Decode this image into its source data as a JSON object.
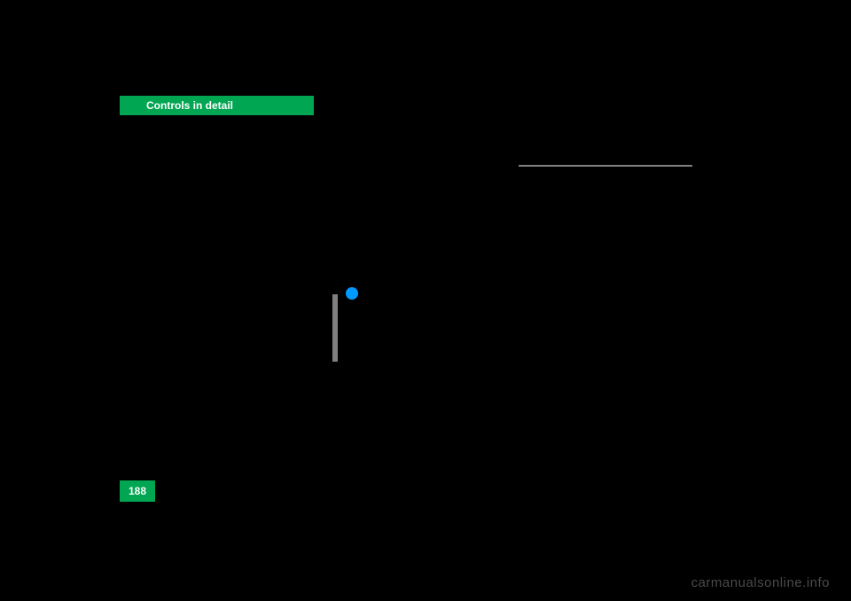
{
  "header": {
    "title": "Controls in detail",
    "background_color": "#00a651",
    "text_color": "#ffffff",
    "fontsize": 12
  },
  "page_number": {
    "value": "188",
    "background_color": "#00a651",
    "text_color": "#ffffff",
    "fontsize": 12
  },
  "info_icon": {
    "color": "#0099ff"
  },
  "vertical_bar": {
    "color": "#808080"
  },
  "horizontal_line": {
    "color": "#808080"
  },
  "watermark": {
    "text": "carmanualsonline.info",
    "color": "#4a4a4a",
    "fontsize": 15
  },
  "background_color": "#000000"
}
